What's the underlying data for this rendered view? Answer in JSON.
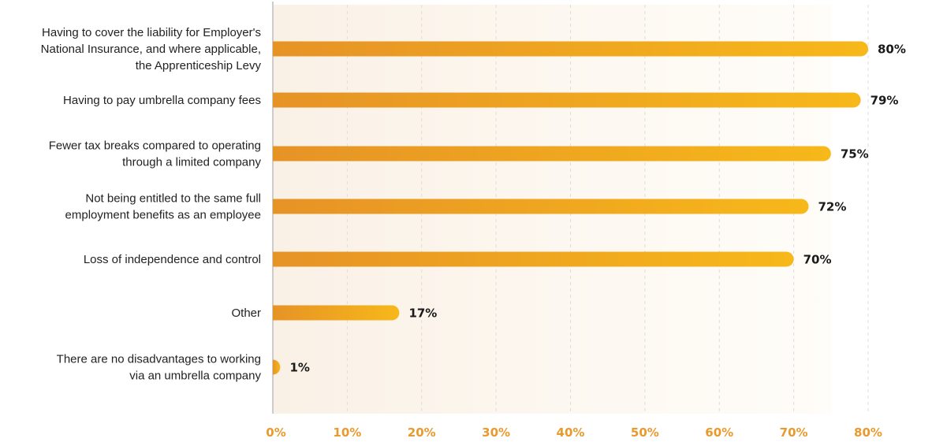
{
  "chart_data": {
    "type": "bar",
    "orientation": "horizontal",
    "title": "",
    "xlabel": "",
    "ylabel": "",
    "xlim": [
      0,
      80
    ],
    "grid": true,
    "categories": [
      [
        "Having to cover the liability for Employer's",
        "National Insurance, and where applicable,",
        "the Apprenticeship Levy"
      ],
      [
        "Having to pay umbrella company fees"
      ],
      [
        "Fewer tax breaks compared to operating",
        "through a limited company"
      ],
      [
        "Not being entitled to the same full",
        "employment benefits as an employee"
      ],
      [
        "Loss of independence and control"
      ],
      [
        "Other"
      ],
      [
        "There are no disadvantages to working",
        "via an umbrella company"
      ]
    ],
    "values": [
      80,
      79,
      75,
      72,
      70,
      17,
      1
    ],
    "value_labels": [
      "80%",
      "79%",
      "75%",
      "72%",
      "70%",
      "17%",
      "1%"
    ],
    "ticks": [
      0,
      10,
      20,
      30,
      40,
      50,
      60,
      70,
      80
    ],
    "tick_labels": [
      "0%",
      "10%",
      "20%",
      "30%",
      "40%",
      "50%",
      "60%",
      "70%",
      "80%"
    ]
  },
  "colors": {
    "bar_start": "#e69326",
    "bar_end": "#f7b81a",
    "tick_text": "#e89a2e",
    "plot_bg_start": "#faf1e6",
    "plot_bg_end": "#fffdf9",
    "grid": "#dddddd",
    "axis": "#cccccc"
  }
}
